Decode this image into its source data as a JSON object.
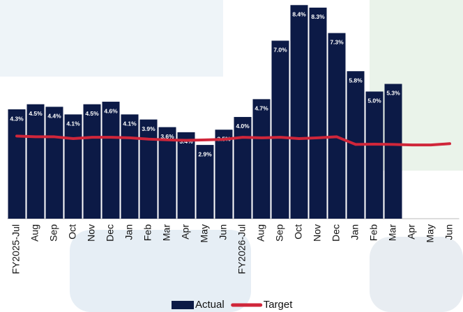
{
  "chart_data": {
    "type": "bar",
    "categories": [
      "FY2025-Jul",
      "Aug",
      "Sep",
      "Oct",
      "Nov",
      "Dec",
      "Jan",
      "Feb",
      "Mar",
      "Apr",
      "May",
      "Jun",
      "FY2026-Jul",
      "Aug",
      "Sep",
      "Oct",
      "Nov",
      "Dec",
      "Jan",
      "Feb",
      "Mar",
      "Apr",
      "May",
      "Jun"
    ],
    "series": [
      {
        "name": "Actual",
        "type": "bar",
        "color": "#0c1a46",
        "values": [
          4.3,
          4.5,
          4.4,
          4.1,
          4.5,
          4.6,
          4.1,
          3.9,
          3.6,
          3.4,
          2.9,
          3.5,
          4.0,
          4.7,
          7.0,
          8.4,
          8.3,
          7.3,
          5.8,
          5.0,
          5.3,
          null,
          null,
          null
        ],
        "value_labels": [
          "4.3%",
          "4.5%",
          "4.4%",
          "4.1%",
          "4.5%",
          "4.6%",
          "4.1%",
          "3.9%",
          "3.6%",
          "3.4%",
          "2.9%",
          "3.5%",
          "4.0%",
          "4.7%",
          "7.0%",
          "8.4%",
          "8.3%",
          "7.3%",
          "5.8%",
          "5.0%",
          "5.3%",
          null,
          null,
          null
        ]
      },
      {
        "name": "Target",
        "type": "line",
        "color": "#d0263a",
        "values": [
          3.25,
          3.22,
          3.22,
          3.15,
          3.2,
          3.2,
          3.18,
          3.13,
          3.1,
          3.08,
          3.1,
          3.12,
          3.2,
          3.18,
          3.2,
          3.15,
          3.18,
          3.22,
          2.92,
          2.93,
          2.92,
          2.9,
          2.9,
          2.95
        ]
      }
    ],
    "ylim": [
      0,
      8.6
    ],
    "legend": "bottom"
  }
}
